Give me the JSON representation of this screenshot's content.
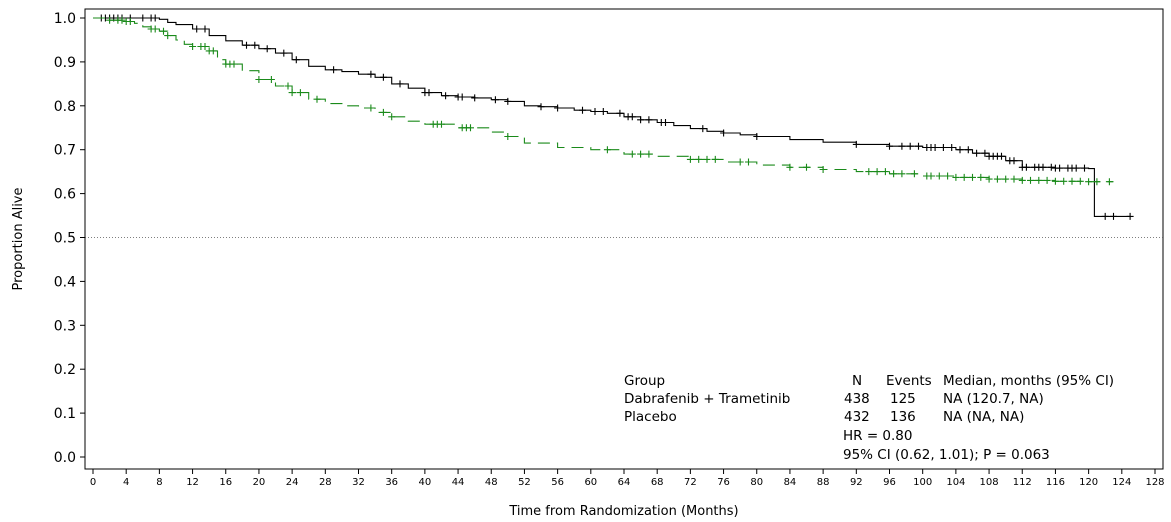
{
  "chart_data": {
    "type": "line",
    "title": "",
    "xlabel": "Time from Randomization (Months)",
    "ylabel": "Proportion Alive",
    "xlim": [
      0,
      128
    ],
    "ylim": [
      0,
      1
    ],
    "x_ticks": [
      0,
      4,
      8,
      12,
      16,
      20,
      24,
      28,
      32,
      36,
      40,
      44,
      48,
      52,
      56,
      60,
      64,
      68,
      72,
      76,
      80,
      84,
      88,
      92,
      96,
      100,
      104,
      108,
      112,
      116,
      120,
      124,
      128
    ],
    "y_ticks": [
      "0.0",
      "0.1",
      "0.2",
      "0.3",
      "0.4",
      "0.5",
      "0.6",
      "0.7",
      "0.8",
      "0.9",
      "1.0"
    ],
    "reference_line": 0.5,
    "grid": false,
    "series": [
      {
        "name": "Dabrafenib + Trametinib",
        "color": "#000000",
        "style": "solid",
        "x": [
          0,
          2,
          4,
          6,
          8,
          9,
          10,
          12,
          14,
          16,
          18,
          20,
          22,
          24,
          26,
          28,
          30,
          32,
          34,
          36,
          38,
          40,
          42,
          44,
          46,
          48,
          50,
          52,
          54,
          56,
          58,
          60,
          62,
          64,
          66,
          68,
          70,
          72,
          74,
          76,
          78,
          80,
          84,
          88,
          92,
          96,
          100,
          104,
          106,
          108,
          110,
          112,
          116,
          120,
          120.7,
          125
        ],
        "y": [
          1.0,
          1.0,
          1.0,
          1.0,
          0.997,
          0.99,
          0.985,
          0.975,
          0.96,
          0.948,
          0.938,
          0.93,
          0.92,
          0.905,
          0.89,
          0.882,
          0.878,
          0.872,
          0.865,
          0.85,
          0.84,
          0.83,
          0.823,
          0.82,
          0.818,
          0.814,
          0.81,
          0.8,
          0.798,
          0.795,
          0.79,
          0.787,
          0.783,
          0.775,
          0.768,
          0.762,
          0.755,
          0.748,
          0.742,
          0.738,
          0.734,
          0.73,
          0.723,
          0.717,
          0.712,
          0.708,
          0.705,
          0.7,
          0.692,
          0.685,
          0.675,
          0.66,
          0.658,
          0.657,
          0.548,
          0.548
        ],
        "censor_x": [
          1,
          1.5,
          2,
          2.5,
          3,
          3.5,
          4.5,
          6,
          7,
          7.5,
          12.5,
          13.5,
          18.5,
          19.5,
          21,
          23,
          24.5,
          29,
          33.5,
          35,
          37,
          40,
          40.5,
          42.5,
          44,
          44.5,
          46,
          48.5,
          50,
          54,
          56,
          59,
          60.5,
          61.5,
          63.5,
          64.5,
          65,
          66,
          67,
          68.5,
          69,
          73.5,
          76,
          80,
          92,
          96,
          97.5,
          98.5,
          99.5,
          100.5,
          101,
          101.5,
          102.5,
          103.5,
          104.5,
          105.5,
          106.5,
          107.5,
          108,
          108.5,
          109,
          109.5,
          110.5,
          111,
          112,
          112.5,
          113.5,
          114,
          114.5,
          115.5,
          116,
          116.5,
          117.5,
          118,
          118.5,
          119.5,
          122,
          123,
          125
        ]
      },
      {
        "name": "Placebo",
        "color": "#1a8a1a",
        "style": "dashed",
        "x": [
          0,
          2,
          4,
          5,
          6,
          7,
          8,
          9,
          10,
          11,
          12,
          14,
          15,
          16,
          18,
          20,
          22,
          24,
          26,
          28,
          30,
          32,
          34,
          36,
          38,
          40,
          44,
          48,
          50,
          52,
          56,
          60,
          64,
          68,
          72,
          76,
          80,
          84,
          88,
          92,
          96,
          100,
          104,
          108,
          112,
          116,
          120,
          123
        ],
        "y": [
          1.0,
          0.995,
          0.992,
          0.988,
          0.98,
          0.975,
          0.97,
          0.96,
          0.95,
          0.94,
          0.935,
          0.925,
          0.905,
          0.895,
          0.88,
          0.86,
          0.845,
          0.83,
          0.815,
          0.805,
          0.8,
          0.795,
          0.785,
          0.775,
          0.765,
          0.758,
          0.75,
          0.74,
          0.73,
          0.715,
          0.705,
          0.7,
          0.69,
          0.685,
          0.678,
          0.672,
          0.665,
          0.66,
          0.655,
          0.65,
          0.645,
          0.64,
          0.637,
          0.633,
          0.63,
          0.628,
          0.627,
          0.627
        ],
        "censor_x": [
          2,
          3,
          3.5,
          4,
          4.5,
          7,
          7.5,
          8.5,
          9,
          12,
          13,
          13.5,
          14,
          14.5,
          16,
          16.5,
          17,
          20,
          21.5,
          23.5,
          24,
          25,
          27,
          33.5,
          35,
          36,
          41,
          41.5,
          42,
          44.5,
          45,
          45.5,
          50,
          62,
          65,
          66,
          67,
          72,
          73,
          74,
          75,
          78,
          79,
          84,
          86,
          88,
          93.5,
          94.5,
          95.5,
          96.5,
          97.5,
          99,
          100.5,
          101,
          102,
          103,
          104,
          105,
          106,
          107,
          108,
          109,
          110,
          111,
          112,
          113,
          114,
          115,
          116,
          117,
          118,
          119,
          120,
          121,
          122.5
        ]
      }
    ],
    "legend": {
      "header": {
        "group": "Group",
        "n": "N",
        "events": "Events",
        "median": "Median, months (95% CI)"
      },
      "rows": [
        {
          "group": "Dabrafenib + Trametinib",
          "n": "438",
          "events": "125",
          "median": "NA (120.7, NA)"
        },
        {
          "group": "Placebo",
          "n": "432",
          "events": "136",
          "median": "NA (NA, NA)"
        }
      ],
      "hr": "HR = 0.80",
      "ci": "95% CI (0.62, 1.01); P = 0.063"
    }
  }
}
